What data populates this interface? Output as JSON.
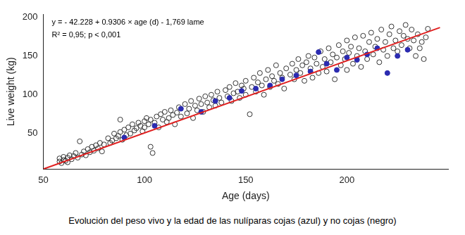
{
  "chart_data": {
    "type": "scatter",
    "caption": "Evolución del peso vivo y la edad de las nulíparas cojas (azul) y no cojas (negro)",
    "annotations": [
      "y = - 42.228 + 0.9306 × age (d) - 1,769 lame",
      "R² = 0,95; p < 0,001"
    ],
    "x_label": "Age (days)",
    "y_label": "Live weight (kg)",
    "xlim": [
      50,
      250
    ],
    "ylim": [
      4,
      204
    ],
    "xticks": [
      50,
      100,
      150,
      200
    ],
    "yticks": [
      50,
      100,
      150,
      200
    ],
    "grid": false,
    "series": [
      {
        "type": "scatter",
        "marker": "circle-open",
        "color": "#333333",
        "x": [
          58,
          58,
          59,
          60,
          60,
          61,
          62,
          62,
          63,
          64,
          65,
          66,
          67,
          68,
          69,
          70,
          71,
          72,
          73,
          74,
          75,
          76,
          77,
          78,
          79,
          80,
          82,
          83,
          84,
          85,
          86,
          87,
          88,
          88,
          89,
          90,
          91,
          92,
          93,
          94,
          95,
          96,
          97,
          98,
          99,
          100,
          100,
          101,
          102,
          103,
          104,
          103,
          105,
          106,
          107,
          108,
          109,
          110,
          111,
          112,
          113,
          114,
          115,
          116,
          117,
          118,
          120,
          121,
          122,
          123,
          124,
          125,
          126,
          127,
          128,
          129,
          130,
          131,
          132,
          133,
          134,
          135,
          136,
          137,
          138,
          140,
          141,
          142,
          143,
          144,
          145,
          146,
          147,
          148,
          149,
          150,
          150,
          152,
          153,
          154,
          155,
          156,
          157,
          158,
          159,
          160,
          161,
          162,
          163,
          164,
          165,
          166,
          167,
          168,
          169,
          170,
          172,
          173,
          174,
          175,
          176,
          177,
          178,
          179,
          180,
          181,
          182,
          183,
          184,
          185,
          186,
          187,
          188,
          189,
          190,
          191,
          192,
          193,
          194,
          195,
          196,
          197,
          198,
          199,
          200,
          200,
          201,
          202,
          203,
          204,
          205,
          206,
          207,
          208,
          209,
          210,
          211,
          212,
          213,
          214,
          215,
          216,
          217,
          218,
          219,
          220,
          221,
          222,
          223,
          224,
          225,
          226,
          227,
          228,
          229,
          230,
          231,
          232,
          233,
          234,
          235,
          236,
          237,
          238,
          239,
          240
        ],
        "values": [
          14,
          18,
          12,
          16,
          20,
          15,
          19,
          13,
          22,
          17,
          21,
          25,
          19,
          40,
          23,
          27,
          22,
          30,
          26,
          33,
          28,
          35,
          31,
          38,
          27,
          36,
          44,
          38,
          41,
          50,
          44,
          47,
          68,
          52,
          42,
          55,
          48,
          58,
          50,
          62,
          54,
          57,
          64,
          60,
          53,
          66,
          58,
          70,
          62,
          33,
          25,
          68,
          64,
          72,
          58,
          75,
          68,
          78,
          65,
          70,
          80,
          74,
          62,
          77,
          84,
          72,
          88,
          76,
          82,
          92,
          70,
          86,
          80,
          95,
          88,
          78,
          98,
          90,
          84,
          100,
          93,
          86,
          104,
          96,
          90,
          106,
          98,
          110,
          92,
          102,
          115,
          104,
          96,
          112,
          108,
          118,
          100,
          75,
          110,
          122,
          104,
          116,
          128,
          112,
          100,
          120,
          132,
          110,
          124,
          118,
          138,
          114,
          128,
          122,
          108,
          134,
          126,
          140,
          120,
          132,
          146,
          128,
          138,
          118,
          142,
          150,
          134,
          122,
          148,
          140,
          128,
          156,
          136,
          146,
          130,
          160,
          142,
          152,
          120,
          148,
          164,
          138,
          156,
          146,
          170,
          132,
          154,
          162,
          140,
          174,
          150,
          160,
          136,
          176,
          156,
          146,
          168,
          180,
          152,
          162,
          172,
          142,
          184,
          158,
          168,
          150,
          178,
          188,
          160,
          170,
          156,
          182,
          164,
          176,
          190,
          172,
          160,
          184,
          170,
          150,
          178,
          160,
          168,
          146,
          174,
          185
        ]
      },
      {
        "type": "scatter",
        "marker": "circle",
        "color": "#2b2bb0",
        "x": [
          90,
          105,
          118,
          128,
          135,
          142,
          148,
          155,
          162,
          168,
          175,
          182,
          186,
          190,
          195,
          200,
          205,
          210,
          215,
          220,
          225,
          230
        ],
        "values": [
          45,
          60,
          82,
          78,
          92,
          96,
          105,
          108,
          112,
          120,
          125,
          130,
          155,
          140,
          132,
          148,
          145,
          152,
          160,
          128,
          150,
          158
        ]
      },
      {
        "type": "line",
        "line_style": "solid",
        "color": "#e02020",
        "x": [
          50,
          246
        ],
        "values": [
          4.3,
          186.7
        ]
      }
    ]
  }
}
